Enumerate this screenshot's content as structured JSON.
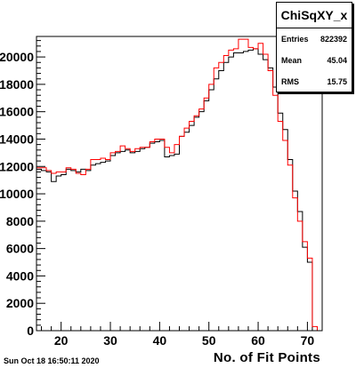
{
  "chart_data": {
    "type": "histogram",
    "stats_box": {
      "title": "ChiSqXY_x",
      "rows": [
        {
          "label": "Entries",
          "value": "822392"
        },
        {
          "label": "Mean",
          "value": "45.04"
        },
        {
          "label": "RMS",
          "value": "15.75"
        }
      ]
    },
    "xlabel": "No. of Fit Points",
    "footer": "Sun Oct 18 16:50:11 2020",
    "xlim": [
      15,
      73
    ],
    "ylim": [
      0,
      21500
    ],
    "x_ticks": [
      "20",
      "30",
      "40",
      "50",
      "60",
      "70"
    ],
    "y_ticks": [
      "0",
      "2000",
      "4000",
      "6000",
      "8000",
      "10000",
      "12000",
      "14000",
      "16000",
      "18000",
      "20000"
    ],
    "bin_width": 1,
    "series": [
      {
        "color": "#000000",
        "x": [
          15,
          16,
          17,
          18,
          19,
          20,
          21,
          22,
          23,
          24,
          25,
          26,
          27,
          28,
          29,
          30,
          31,
          32,
          33,
          34,
          35,
          36,
          37,
          38,
          39,
          40,
          41,
          42,
          43,
          44,
          45,
          46,
          47,
          48,
          49,
          50,
          51,
          52,
          53,
          54,
          55,
          56,
          57,
          58,
          59,
          60,
          61,
          62,
          63,
          64,
          65,
          66,
          67,
          68,
          69,
          70,
          71,
          72
        ],
        "values": [
          11800,
          11700,
          11600,
          10900,
          11300,
          11400,
          11800,
          11700,
          11600,
          11800,
          11700,
          12100,
          12200,
          12300,
          12400,
          12800,
          13000,
          13100,
          13200,
          13000,
          13100,
          13300,
          13400,
          13700,
          13800,
          13900,
          12700,
          12800,
          12900,
          14200,
          14500,
          15000,
          15600,
          16000,
          16800,
          17600,
          18400,
          19000,
          19600,
          20000,
          20300,
          20300,
          20400,
          20500,
          20600,
          20200,
          19800,
          19200,
          17800,
          15900,
          14700,
          12500,
          10200,
          8700,
          6100,
          5000,
          0,
          0
        ]
      },
      {
        "color": "#ff0000",
        "x": [
          15,
          16,
          17,
          18,
          19,
          20,
          21,
          22,
          23,
          24,
          25,
          26,
          27,
          28,
          29,
          30,
          31,
          32,
          33,
          34,
          35,
          36,
          37,
          38,
          39,
          40,
          41,
          42,
          43,
          44,
          45,
          46,
          47,
          48,
          49,
          50,
          51,
          52,
          53,
          54,
          55,
          56,
          57,
          58,
          59,
          60,
          61,
          62,
          63,
          64,
          65,
          66,
          67,
          68,
          69,
          70,
          71,
          72
        ],
        "values": [
          11900,
          11900,
          11700,
          11500,
          11600,
          11600,
          11900,
          11800,
          11500,
          11400,
          11800,
          12500,
          12500,
          12600,
          12500,
          13000,
          13100,
          13500,
          13300,
          13100,
          13300,
          13400,
          13400,
          13800,
          14000,
          14000,
          13400,
          13000,
          13600,
          14200,
          14800,
          15300,
          15700,
          16200,
          17000,
          18000,
          19200,
          19600,
          20100,
          20500,
          20600,
          21300,
          21300,
          20700,
          20600,
          21000,
          20200,
          19000,
          17200,
          15300,
          13900,
          12100,
          9700,
          8000,
          6500,
          5300,
          300,
          0
        ]
      }
    ]
  }
}
